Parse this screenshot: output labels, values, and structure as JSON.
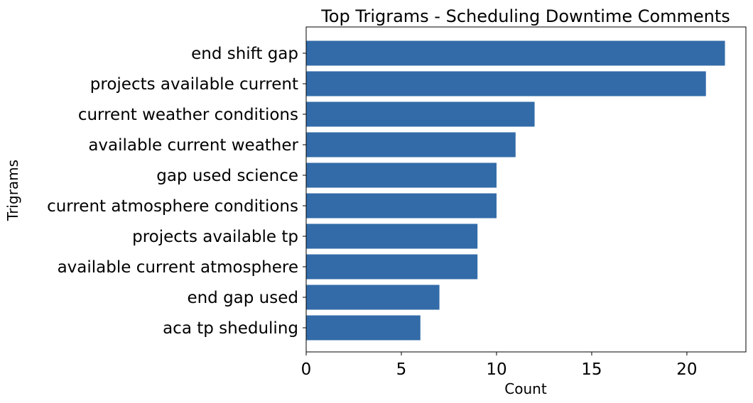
{
  "chart_data": {
    "type": "bar",
    "orientation": "horizontal",
    "title": "Top Trigrams - Scheduling Downtime Comments",
    "xlabel": "Count",
    "ylabel": "Trigrams",
    "categories": [
      "end shift gap",
      "projects available current",
      "current weather conditions",
      "available current weather",
      "gap used science",
      "current atmosphere conditions",
      "projects available tp",
      "available current atmosphere",
      "end gap used",
      "aca tp sheduling"
    ],
    "values": [
      22,
      21,
      12,
      11,
      10,
      10,
      9,
      9,
      7,
      6
    ],
    "xlim": [
      0,
      23.1
    ],
    "xticks": [
      0,
      5,
      10,
      15,
      20
    ],
    "bar_color": "#336BA8",
    "grid": false
  }
}
